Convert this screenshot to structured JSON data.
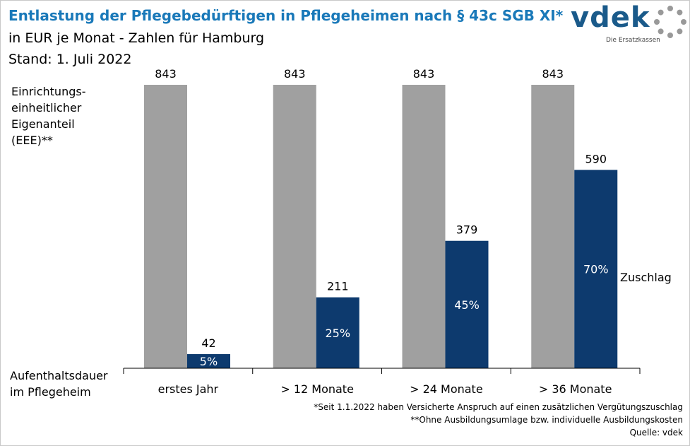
{
  "title": "Entlastung der Pflegebedürftigen in Pflegeheimen nach § 43c SGB XI*",
  "subtitle_line1": "in EUR je Monat - Zahlen für Hamburg",
  "subtitle_line2": "Stand: 1. Juli 2022",
  "logo": {
    "name": "vdek",
    "tagline": "Die Ersatzkassen"
  },
  "y_axis_label": [
    "Einrichtungs-",
    "einheitlicher",
    "Eigenanteil",
    "(EEE)**"
  ],
  "x_axis_label": [
    "Aufenthaltsdauer",
    "im Pflegeheim"
  ],
  "pct_suffix_label": "Zuschlag",
  "footnotes": [
    "*Seit 1.1.2022 haben Versicherte Anspruch auf einen zusätzlichen Vergütungszuschlag",
    "**Ohne Ausbildungsumlage bzw. individuelle Ausbildungskosten",
    "Quelle: vdek"
  ],
  "colors": {
    "title": "#1a79b9",
    "eee_bar": "#a0a0a0",
    "zuschlag_bar": "#0d3a6e",
    "axis": "#000000"
  },
  "chart_data": {
    "type": "bar",
    "categories": [
      "erstes Jahr",
      "> 12 Monate",
      "> 24 Monate",
      "> 36 Monate"
    ],
    "series": [
      {
        "name": "Einrichtungseinheitlicher Eigenanteil (EEE)",
        "values": [
          843,
          843,
          843,
          843
        ],
        "labels": [
          "843",
          "843",
          "843",
          "843"
        ]
      },
      {
        "name": "Zuschlag",
        "values": [
          42,
          211,
          379,
          590
        ],
        "labels": [
          "42",
          "211",
          "379",
          "590"
        ],
        "percent_labels": [
          "5%",
          "25%",
          "45%",
          "70%"
        ]
      }
    ],
    "ylim": [
      0,
      843
    ]
  }
}
